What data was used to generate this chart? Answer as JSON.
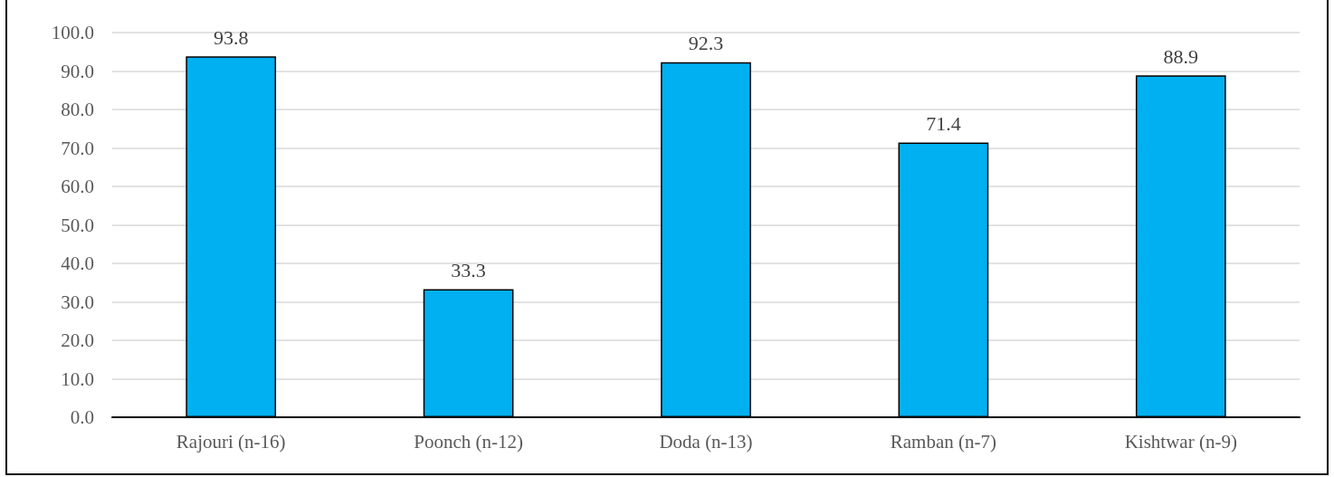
{
  "chart_data": {
    "type": "bar",
    "categories": [
      "Rajouri (n-16)",
      "Poonch (n-12)",
      "Doda (n-13)",
      "Ramban (n-7)",
      "Kishtwar (n-9)"
    ],
    "values": [
      93.8,
      33.3,
      92.3,
      71.4,
      88.9
    ],
    "color": "#00b0f0",
    "ylim": [
      0,
      100
    ],
    "yticks": [
      {
        "value": 0,
        "label": "0.0"
      },
      {
        "value": 10,
        "label": "10.0"
      },
      {
        "value": 20,
        "label": "20.0"
      },
      {
        "value": 30,
        "label": "30.0"
      },
      {
        "value": 40,
        "label": "40.0"
      },
      {
        "value": 50,
        "label": "50.0"
      },
      {
        "value": 60,
        "label": "60.0"
      },
      {
        "value": 70,
        "label": "70.0"
      },
      {
        "value": 80,
        "label": "80.0"
      },
      {
        "value": 90,
        "label": "90.0"
      },
      {
        "value": 100,
        "label": "100.0"
      }
    ],
    "grid": "y",
    "data_labels": true
  }
}
